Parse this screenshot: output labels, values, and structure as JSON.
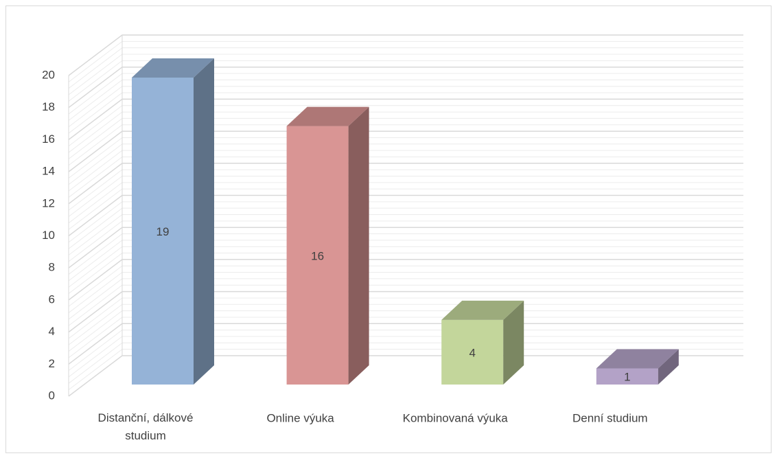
{
  "chart_data": {
    "type": "bar3d",
    "categories": [
      "Distanční, dálkové studium",
      "Online výuka",
      "Kombinovaná výuka",
      "Denní studium"
    ],
    "values": [
      19,
      16,
      4,
      1
    ],
    "colors": [
      "#95b3d7",
      "#d99594",
      "#c3d69b",
      "#b3a2c7"
    ],
    "ylim": [
      0,
      20
    ],
    "yticks": [
      0,
      2,
      4,
      6,
      8,
      10,
      12,
      14,
      16,
      18,
      20
    ],
    "grid": true
  }
}
